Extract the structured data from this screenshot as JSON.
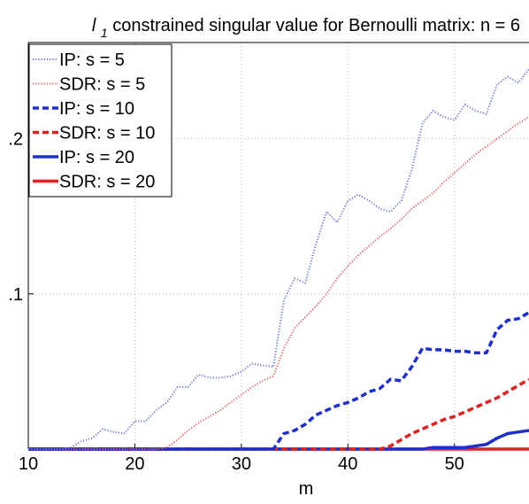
{
  "chart_data": {
    "type": "line",
    "title_prefix": "l",
    "title_subscript": "1",
    "title_rest": " constrained singular value for Bernoulli matrix: n = 6",
    "xlabel": "m",
    "ylabel": "",
    "xlim": [
      10,
      57
    ],
    "ylim": [
      0,
      0.262
    ],
    "x_ticks": [
      10,
      20,
      30,
      40,
      50
    ],
    "x_tick_labels": [
      "10",
      "20",
      "30",
      "40",
      "50"
    ],
    "y_ticks": [
      0.1,
      0.2
    ],
    "y_tick_labels": [
      ".1",
      ".2"
    ],
    "grid": true,
    "legend_position": "top-left",
    "series": [
      {
        "name": "IP: s = 5",
        "color": "#6b79c9",
        "style": "dotted",
        "width": "thin",
        "x": [
          10,
          11,
          12,
          13,
          14,
          15,
          16,
          17,
          18,
          19,
          20,
          21,
          22,
          23,
          24,
          25,
          26,
          27,
          28,
          29,
          30,
          31,
          32,
          33,
          34,
          35,
          36,
          37,
          38,
          39,
          40,
          41,
          42,
          43,
          44,
          45,
          46,
          47,
          48,
          49,
          50,
          51,
          52,
          53,
          54,
          55,
          56,
          57
        ],
        "values": [
          0,
          0,
          0,
          0,
          0.001,
          0.005,
          0.007,
          0.013,
          0.011,
          0.01,
          0.018,
          0.018,
          0.025,
          0.03,
          0.04,
          0.04,
          0.048,
          0.046,
          0.046,
          0.047,
          0.05,
          0.055,
          0.054,
          0.053,
          0.096,
          0.11,
          0.107,
          0.132,
          0.153,
          0.146,
          0.16,
          0.164,
          0.16,
          0.155,
          0.153,
          0.16,
          0.18,
          0.21,
          0.218,
          0.214,
          0.212,
          0.222,
          0.218,
          0.216,
          0.235,
          0.24,
          0.236,
          0.245
        ]
      },
      {
        "name": "SDR: s = 5",
        "color": "#e06060",
        "style": "dotted",
        "width": "thin",
        "x": [
          10,
          11,
          12,
          13,
          14,
          15,
          16,
          17,
          18,
          19,
          20,
          21,
          22,
          23,
          24,
          25,
          26,
          27,
          28,
          29,
          30,
          31,
          32,
          33,
          34,
          35,
          36,
          37,
          38,
          39,
          40,
          41,
          42,
          43,
          44,
          45,
          46,
          47,
          48,
          49,
          50,
          51,
          52,
          53,
          54,
          55,
          56,
          57
        ],
        "values": [
          0,
          0,
          0,
          0,
          0,
          0,
          0,
          0,
          0,
          0,
          0,
          0,
          0,
          0.001,
          0.006,
          0.012,
          0.017,
          0.021,
          0.025,
          0.03,
          0.035,
          0.04,
          0.044,
          0.047,
          0.065,
          0.078,
          0.085,
          0.092,
          0.1,
          0.11,
          0.118,
          0.125,
          0.131,
          0.137,
          0.142,
          0.148,
          0.155,
          0.16,
          0.165,
          0.172,
          0.178,
          0.184,
          0.19,
          0.195,
          0.2,
          0.205,
          0.21,
          0.214
        ]
      },
      {
        "name": "IP: s = 10",
        "color": "#1f2fcc",
        "style": "dashed",
        "width": "thick",
        "x": [
          10,
          11,
          12,
          13,
          14,
          15,
          16,
          17,
          18,
          19,
          20,
          21,
          22,
          23,
          24,
          25,
          26,
          27,
          28,
          29,
          30,
          31,
          32,
          33,
          34,
          35,
          36,
          37,
          38,
          39,
          40,
          41,
          42,
          43,
          44,
          45,
          46,
          47,
          48,
          49,
          50,
          51,
          52,
          53,
          54,
          55,
          56,
          57
        ],
        "values": [
          0,
          0,
          0,
          0,
          0,
          0,
          0,
          0,
          0,
          0,
          0,
          0,
          0,
          0,
          0,
          0,
          0,
          0,
          0,
          0,
          0,
          0,
          0,
          0,
          0.01,
          0.012,
          0.016,
          0.022,
          0.025,
          0.028,
          0.03,
          0.033,
          0.037,
          0.039,
          0.045,
          0.044,
          0.053,
          0.065,
          0.064,
          0.064,
          0.063,
          0.063,
          0.062,
          0.062,
          0.077,
          0.083,
          0.084,
          0.088
        ]
      },
      {
        "name": "SDR: s = 10",
        "color": "#dd2222",
        "style": "dashed",
        "width": "thick",
        "x": [
          10,
          11,
          12,
          13,
          14,
          15,
          16,
          17,
          18,
          19,
          20,
          21,
          22,
          23,
          24,
          25,
          26,
          27,
          28,
          29,
          30,
          31,
          32,
          33,
          34,
          35,
          36,
          37,
          38,
          39,
          40,
          41,
          42,
          43,
          44,
          45,
          46,
          47,
          48,
          49,
          50,
          51,
          52,
          53,
          54,
          55,
          56,
          57
        ],
        "values": [
          0,
          0,
          0,
          0,
          0,
          0,
          0,
          0,
          0,
          0,
          0,
          0,
          0,
          0,
          0,
          0,
          0,
          0,
          0,
          0,
          0,
          0,
          0,
          0,
          0,
          0,
          0,
          0,
          0,
          0,
          0,
          0,
          0,
          0,
          0.002,
          0.006,
          0.01,
          0.013,
          0.016,
          0.019,
          0.021,
          0.024,
          0.027,
          0.03,
          0.033,
          0.037,
          0.041,
          0.045
        ]
      },
      {
        "name": "IP: s = 20",
        "color": "#1f2fcc",
        "style": "solid",
        "width": "thick",
        "x": [
          10,
          11,
          12,
          13,
          14,
          15,
          16,
          17,
          18,
          19,
          20,
          21,
          22,
          23,
          24,
          25,
          26,
          27,
          28,
          29,
          30,
          31,
          32,
          33,
          34,
          35,
          36,
          37,
          38,
          39,
          40,
          41,
          42,
          43,
          44,
          45,
          46,
          47,
          48,
          49,
          50,
          51,
          52,
          53,
          54,
          55,
          56,
          57
        ],
        "values": [
          0,
          0,
          0,
          0,
          0,
          0,
          0,
          0,
          0,
          0,
          0,
          0,
          0,
          0,
          0,
          0,
          0,
          0,
          0,
          0,
          0,
          0,
          0,
          0,
          0,
          0,
          0,
          0,
          0,
          0,
          0,
          0,
          0,
          0,
          0,
          0,
          0,
          0,
          0.001,
          0.001,
          0.001,
          0.001,
          0.002,
          0.003,
          0.007,
          0.01,
          0.011,
          0.012
        ]
      },
      {
        "name": "SDR: s = 20",
        "color": "#dd2222",
        "style": "solid",
        "width": "thick",
        "x": [
          10,
          11,
          12,
          13,
          14,
          15,
          16,
          17,
          18,
          19,
          20,
          21,
          22,
          23,
          24,
          25,
          26,
          27,
          28,
          29,
          30,
          31,
          32,
          33,
          34,
          35,
          36,
          37,
          38,
          39,
          40,
          41,
          42,
          43,
          44,
          45,
          46,
          47,
          48,
          49,
          50,
          51,
          52,
          53,
          54,
          55,
          56,
          57
        ],
        "values": [
          0,
          0,
          0,
          0,
          0,
          0,
          0,
          0,
          0,
          0,
          0,
          0,
          0,
          0,
          0,
          0,
          0,
          0,
          0,
          0,
          0,
          0,
          0,
          0,
          0,
          0,
          0,
          0,
          0,
          0,
          0,
          0,
          0,
          0,
          0,
          0,
          0,
          0,
          0,
          0,
          0,
          0,
          0,
          0,
          0,
          0,
          0,
          0
        ]
      }
    ]
  }
}
